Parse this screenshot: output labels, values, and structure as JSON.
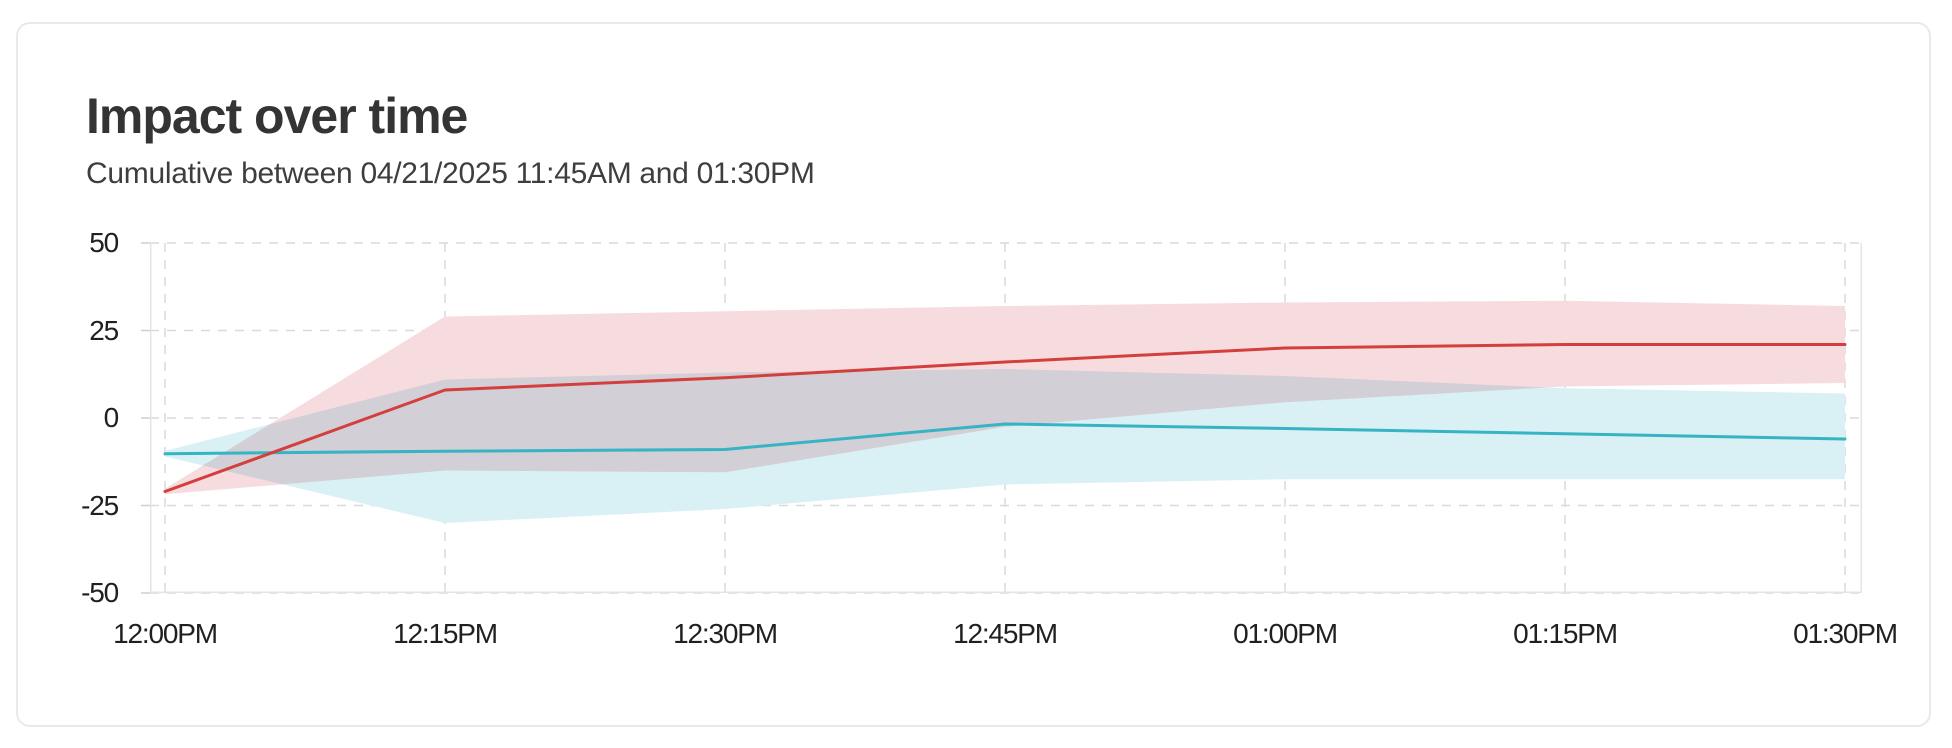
{
  "card": {
    "title": "Impact over time",
    "subtitle": "Cumulative between 04/21/2025 11:45AM and 01:30PM"
  },
  "chart_data": {
    "type": "line",
    "title": "Impact over time",
    "subtitle": "Cumulative between 04/21/2025 11:45AM and 01:30PM",
    "xlabel": "",
    "ylabel": "",
    "x_tick_labels": [
      "12:00PM",
      "12:15PM",
      "12:30PM",
      "12:45PM",
      "01:00PM",
      "01:15PM",
      "01:30PM"
    ],
    "y_ticks": [
      50,
      25,
      0,
      -25,
      -50
    ],
    "ylim": [
      -50,
      50
    ],
    "grid": "dashed",
    "legend_position": "none",
    "series": [
      {
        "name": "red-series",
        "color": "#d33f3c",
        "band_color": "#f7dcdf",
        "values": [
          -21,
          8,
          11.5,
          16,
          20,
          21,
          21
        ],
        "band_upper": [
          -20.2,
          29,
          30.5,
          32,
          33,
          33.5,
          32
        ],
        "band_lower": [
          -21.8,
          -15,
          -15.5,
          -2.5,
          4.5,
          9,
          10
        ]
      },
      {
        "name": "teal-series",
        "color": "#36b4c3",
        "band_color": "#d9f0f5",
        "values": [
          -10.2,
          -9.5,
          -9,
          -1.7,
          -3,
          -4.5,
          -6
        ],
        "band_upper": [
          -9.4,
          11,
          13,
          14,
          12,
          8.5,
          7
        ],
        "band_lower": [
          -11,
          -30,
          -26,
          -19,
          -17.5,
          -17.5,
          -17.5
        ]
      }
    ]
  }
}
